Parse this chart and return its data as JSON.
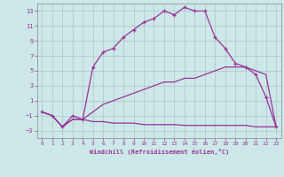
{
  "bg_color": "#cce8e8",
  "line_color": "#993399",
  "xlabel": "Windchill (Refroidissement éolien,°C)",
  "xlim": [
    -0.5,
    23.5
  ],
  "ylim": [
    -4,
    14
  ],
  "yticks": [
    -3,
    -1,
    1,
    3,
    5,
    7,
    9,
    11,
    13
  ],
  "xticks": [
    0,
    1,
    2,
    3,
    4,
    5,
    6,
    7,
    8,
    9,
    10,
    11,
    12,
    13,
    14,
    15,
    16,
    17,
    18,
    19,
    20,
    21,
    22,
    23
  ],
  "series1_x": [
    0,
    1,
    2,
    3,
    4,
    5,
    6,
    7,
    8,
    9,
    10,
    11,
    12,
    13,
    14,
    15,
    16,
    17,
    18,
    19,
    20,
    21,
    22,
    23
  ],
  "series1_y": [
    -0.5,
    -1.0,
    -2.5,
    -1.0,
    -1.5,
    5.5,
    7.5,
    8.0,
    9.5,
    10.5,
    11.5,
    12.0,
    13.0,
    12.5,
    13.5,
    13.0,
    13.0,
    9.5,
    8.0,
    6.0,
    5.5,
    4.5,
    1.5,
    -2.5
  ],
  "series2_x": [
    0,
    1,
    2,
    3,
    4,
    5,
    6,
    7,
    8,
    9,
    10,
    11,
    12,
    13,
    14,
    15,
    16,
    17,
    18,
    19,
    20,
    21,
    22,
    23
  ],
  "series2_y": [
    -0.5,
    -1.0,
    -2.5,
    -1.5,
    -1.5,
    -0.5,
    0.5,
    1.0,
    1.5,
    2.0,
    2.5,
    3.0,
    3.5,
    3.5,
    4.0,
    4.0,
    4.5,
    5.0,
    5.5,
    5.5,
    5.5,
    5.0,
    4.5,
    -2.5
  ],
  "series3_x": [
    0,
    1,
    2,
    3,
    4,
    5,
    6,
    7,
    8,
    9,
    10,
    11,
    12,
    13,
    14,
    15,
    16,
    17,
    18,
    19,
    20,
    21,
    22,
    23
  ],
  "series3_y": [
    -0.5,
    -1.0,
    -2.5,
    -1.5,
    -1.5,
    -1.8,
    -1.8,
    -2.0,
    -2.0,
    -2.0,
    -2.2,
    -2.2,
    -2.2,
    -2.2,
    -2.3,
    -2.3,
    -2.3,
    -2.3,
    -2.3,
    -2.3,
    -2.3,
    -2.5,
    -2.5,
    -2.5
  ]
}
